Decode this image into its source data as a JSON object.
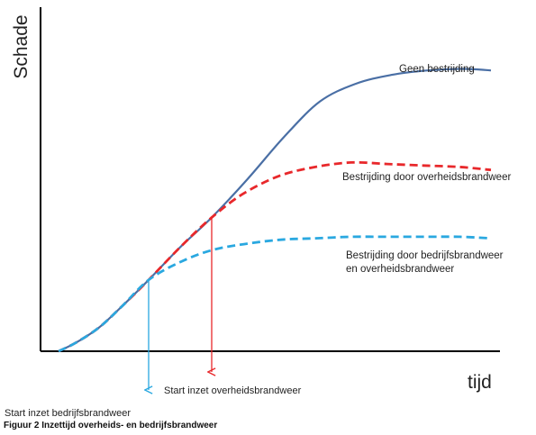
{
  "chart_data": {
    "type": "line",
    "xlabel": "tijd",
    "ylabel": "Schade",
    "xlim": [
      0,
      100
    ],
    "ylim": [
      0,
      100
    ],
    "grid": false,
    "series": [
      {
        "name": "Geen bestrijding",
        "color": "#4a6fa5",
        "style": "solid",
        "x": [
          4,
          8,
          13,
          18,
          24,
          31,
          38,
          46,
          54,
          62,
          70,
          78,
          86,
          94,
          100
        ],
        "y": [
          0,
          3,
          8,
          15,
          24,
          35,
          45,
          58,
          72,
          84,
          90,
          93,
          94.5,
          95,
          94.5
        ]
      },
      {
        "name": "Bestrijding door overheidsbrandweer",
        "color": "#e8282b",
        "style": "dashed",
        "x": [
          4,
          8,
          13,
          18,
          24,
          31,
          38,
          45,
          53,
          61,
          69,
          77,
          85,
          93,
          100
        ],
        "y": [
          0,
          3,
          8,
          15,
          24,
          35,
          45,
          53,
          59,
          62,
          63.5,
          63,
          62.5,
          62,
          61
        ]
      },
      {
        "name": "Bestrijding door bedrijfsbrandweer en overheidsbrandweer",
        "color": "#2aa8e0",
        "style": "dashed",
        "x": [
          4,
          8,
          13,
          18,
          24,
          31,
          38,
          45,
          53,
          61,
          69,
          77,
          85,
          93,
          100
        ],
        "y": [
          0,
          3,
          8,
          15,
          24,
          30,
          34,
          36,
          37.5,
          38,
          38.5,
          38.5,
          38.5,
          38.5,
          38
        ]
      }
    ],
    "annotations": [
      {
        "text": "Start inzet bedrijfsbrandweer",
        "x": 24,
        "color": "#2aa8e0"
      },
      {
        "text": "Start inzet overheidsbrandweer",
        "x": 38,
        "color": "#e8282b"
      }
    ],
    "series_labels": [
      {
        "lines": [
          "Geen bestrijding"
        ]
      },
      {
        "lines": [
          "Bestrijding door overheidsbrandweer"
        ]
      },
      {
        "lines": [
          "Bestrijding door bedrijfsbrandweer",
          "en overheidsbrandweer"
        ]
      }
    ]
  },
  "caption": "Figuur 2 Inzettijd overheids- en bedrijfsbrandweer"
}
